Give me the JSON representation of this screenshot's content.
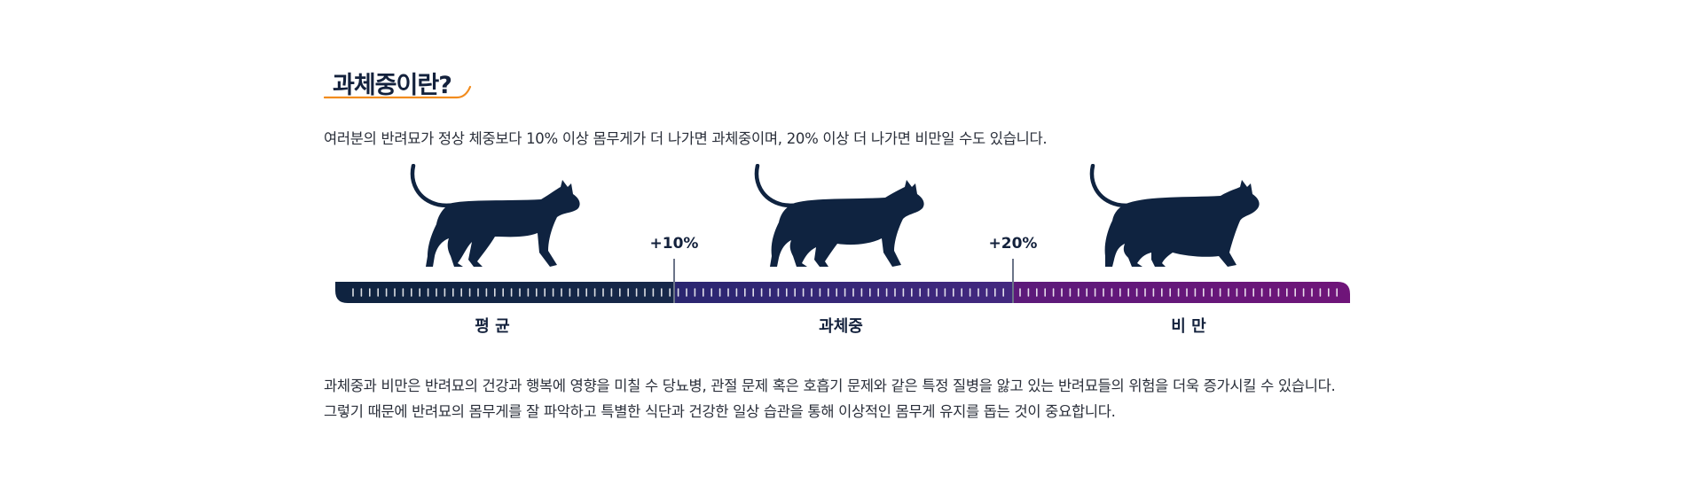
{
  "heading": "과체중이란?",
  "intro_text": "여러분의 반려묘가 정상 체중보다 10% 이상 몸무게가 더 나가면 과체중이며, 20% 이상 더 나가면 비만일 수도 있습니다.",
  "markers": [
    "+10%",
    "+20%"
  ],
  "segments": [
    "평 균",
    "과체중",
    "비 만"
  ],
  "body_lines": [
    "과체중과 비만은 반려묘의 건강과 행복에 영향을 미칠 수 당뇨병, 관절 문제 혹은 호흡기 문제와 같은 특정 질병을 앓고 있는 반려묘들의 위험을 더욱 증가시킬 수 있습니다.",
    "그렇기 때문에 반려묘의 몸무게를 잘 파악하고 특별한 식단과 건강한 일상 습관을 통해 이상적인 몸무게 유지를 돕는 것이 중요합니다."
  ],
  "colors": {
    "navy": "#0f2340",
    "purple": "#3a2a7e",
    "magenta": "#6f1579",
    "accent_orange": "#f28c1e"
  },
  "icons": [
    "cat-normal-icon",
    "cat-overweight-icon",
    "cat-obese-icon"
  ]
}
